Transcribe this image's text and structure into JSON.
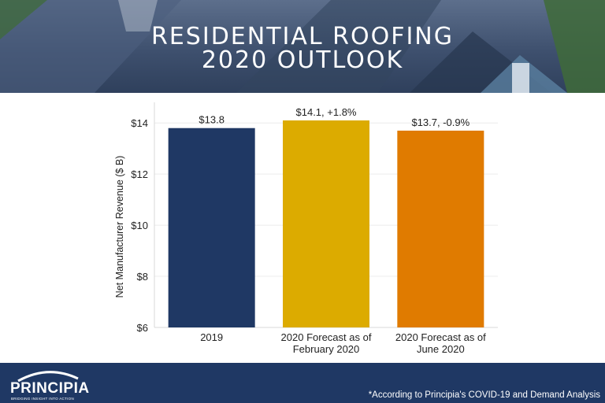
{
  "banner": {
    "title_line1": "RESIDENTIAL ROOFING",
    "title_line2": "2020 OUTLOOK"
  },
  "chart_data": {
    "type": "bar",
    "categories": [
      [
        "2019"
      ],
      [
        "2020 Forecast as of",
        "February 2020"
      ],
      [
        "2020 Forecast as of",
        "June 2020"
      ]
    ],
    "values": [
      13.8,
      14.1,
      13.7
    ],
    "data_labels": [
      "$13.8",
      "$14.1, +1.8%",
      "$13.7, -0.9%"
    ],
    "colors": [
      "#1f3864",
      "#dcab00",
      "#e07b00"
    ],
    "ylabel": "Net Manufacturer Revenue ($ B)",
    "ylim": [
      6,
      14.5
    ],
    "yticks": [
      6,
      8,
      10,
      12,
      14
    ],
    "ytick_labels": [
      "$6",
      "$8",
      "$10",
      "$12",
      "$14"
    ],
    "grid": true
  },
  "footer": {
    "logo_text": "PRINCIPIA",
    "logo_tagline": "BRIDGING INSIGHT INTO ACTION",
    "footnote": "*According to Principia's COVID-19 and Demand Analysis"
  }
}
